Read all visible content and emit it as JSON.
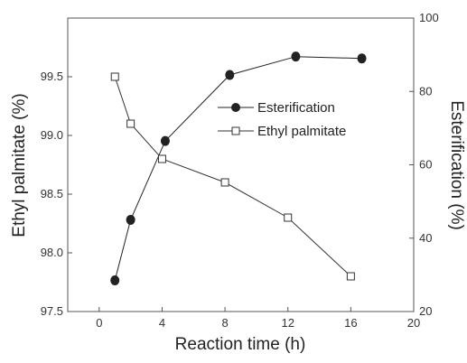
{
  "chart_data": {
    "type": "line",
    "title": "",
    "xlabel": "Reaction time (h)",
    "ylabel_left": "Ethyl palmitate (%)",
    "ylabel_right": "Esterification (%)",
    "xlim": [
      -2,
      20
    ],
    "ylim_left": [
      97.5,
      100.0
    ],
    "ylim_right": [
      20,
      100
    ],
    "x_ticks": [
      0,
      4,
      8,
      12,
      16,
      20
    ],
    "y_left_ticks": [
      "97.5",
      "98.0",
      "98.5",
      "99.0",
      "99.5"
    ],
    "y_left_tick_values": [
      97.5,
      98.0,
      98.5,
      99.0,
      99.5
    ],
    "y_right_ticks": [
      20,
      40,
      60,
      80,
      100
    ],
    "legend_position": "center-right",
    "grid": false,
    "series": [
      {
        "name": "Esterification",
        "axis": "right",
        "marker": "filled-circle",
        "color": "#222222",
        "x": [
          1,
          2,
          4.2,
          8.3,
          12.5,
          16.7
        ],
        "values": [
          28.5,
          45,
          66.5,
          84.5,
          89.5,
          89
        ]
      },
      {
        "name": "Ethyl palmitate",
        "axis": "left",
        "marker": "open-square",
        "color": "#333333",
        "x": [
          1,
          2,
          4,
          8,
          12,
          16
        ],
        "values": [
          99.5,
          99.1,
          98.8,
          98.6,
          98.3,
          97.8
        ]
      }
    ]
  }
}
